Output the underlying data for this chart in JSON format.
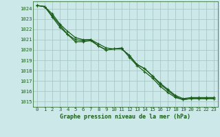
{
  "title": "Graphe pression niveau de la mer (hPa)",
  "bg_color": "#cce8e8",
  "plot_bg_color": "#cce8e8",
  "grid_color": "#a8c8c8",
  "line_color": "#1a5c1a",
  "x_ticks": [
    0,
    1,
    2,
    3,
    4,
    5,
    6,
    7,
    8,
    9,
    10,
    11,
    12,
    13,
    14,
    15,
    16,
    17,
    18,
    19,
    20,
    21,
    22,
    23
  ],
  "y_ticks": [
    1015,
    1016,
    1017,
    1018,
    1019,
    1020,
    1021,
    1022,
    1023,
    1024
  ],
  "ylim": [
    1014.5,
    1024.7
  ],
  "xlim": [
    -0.5,
    23.5
  ],
  "series": [
    [
      1024.3,
      1024.2,
      1023.3,
      1022.4,
      1021.5,
      1021.0,
      1020.9,
      1021.0,
      1020.4,
      1020.0,
      1020.1,
      1020.1,
      1019.5,
      1018.6,
      1018.2,
      1017.5,
      1016.7,
      1016.1,
      1015.5,
      1015.2,
      1015.3,
      1015.3,
      1015.3,
      1015.3
    ],
    [
      1024.3,
      1024.2,
      1023.5,
      1022.5,
      1021.8,
      1021.2,
      1021.0,
      1021.0,
      1020.6,
      1020.2,
      1020.1,
      1020.2,
      1019.3,
      1018.5,
      1017.9,
      1017.3,
      1016.5,
      1015.9,
      1015.4,
      1015.2,
      1015.3,
      1015.3,
      1015.3,
      1015.3
    ],
    [
      1024.3,
      1024.2,
      1023.2,
      1022.2,
      1021.5,
      1020.8,
      1020.8,
      1020.9,
      1020.4,
      1020.0,
      1020.1,
      1020.1,
      1019.5,
      1018.6,
      1018.2,
      1017.5,
      1016.8,
      1016.2,
      1015.6,
      1015.3,
      1015.4,
      1015.4,
      1015.4,
      1015.4
    ]
  ],
  "marker": "+",
  "marker_size": 3,
  "linewidth": 0.9,
  "tick_fontsize": 5.2,
  "xlabel_fontsize": 6.0
}
